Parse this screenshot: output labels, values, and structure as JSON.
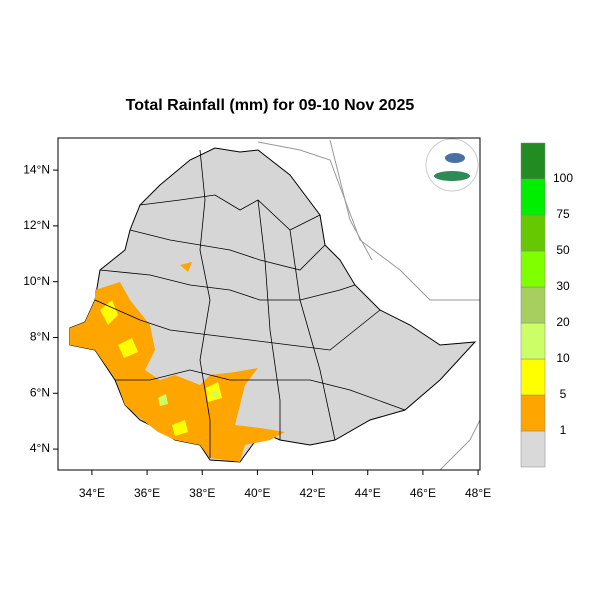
{
  "title": "Total Rainfall (mm) for 09-10 Nov 2025",
  "map": {
    "xlim": [
      32.77,
      48.07
    ],
    "ylim": [
      3.25,
      15.15
    ],
    "xticks": [
      {
        "value": 34,
        "label": "34°E"
      },
      {
        "value": 36,
        "label": "36°E"
      },
      {
        "value": 38,
        "label": "38°E"
      },
      {
        "value": 40,
        "label": "40°E"
      },
      {
        "value": 42,
        "label": "42°E"
      },
      {
        "value": 44,
        "label": "44°E"
      },
      {
        "value": 46,
        "label": "46°E"
      },
      {
        "value": 48,
        "label": "48°E"
      }
    ],
    "yticks": [
      {
        "value": 4,
        "label": "4°N"
      },
      {
        "value": 6,
        "label": "6°N"
      },
      {
        "value": 8,
        "label": "8°N"
      },
      {
        "value": 10,
        "label": "10°N"
      },
      {
        "value": 12,
        "label": "12°N"
      },
      {
        "value": 14,
        "label": "14°N"
      }
    ]
  },
  "legend": {
    "colors": [
      "#d9d9d9",
      "#ffa500",
      "#ffff00",
      "#ccff66",
      "#a6cf5f",
      "#80ff00",
      "#66c800",
      "#00ee00",
      "#228b22"
    ],
    "labels": [
      "1",
      "5",
      "10",
      "20",
      "30",
      "50",
      "75",
      "100"
    ]
  }
}
